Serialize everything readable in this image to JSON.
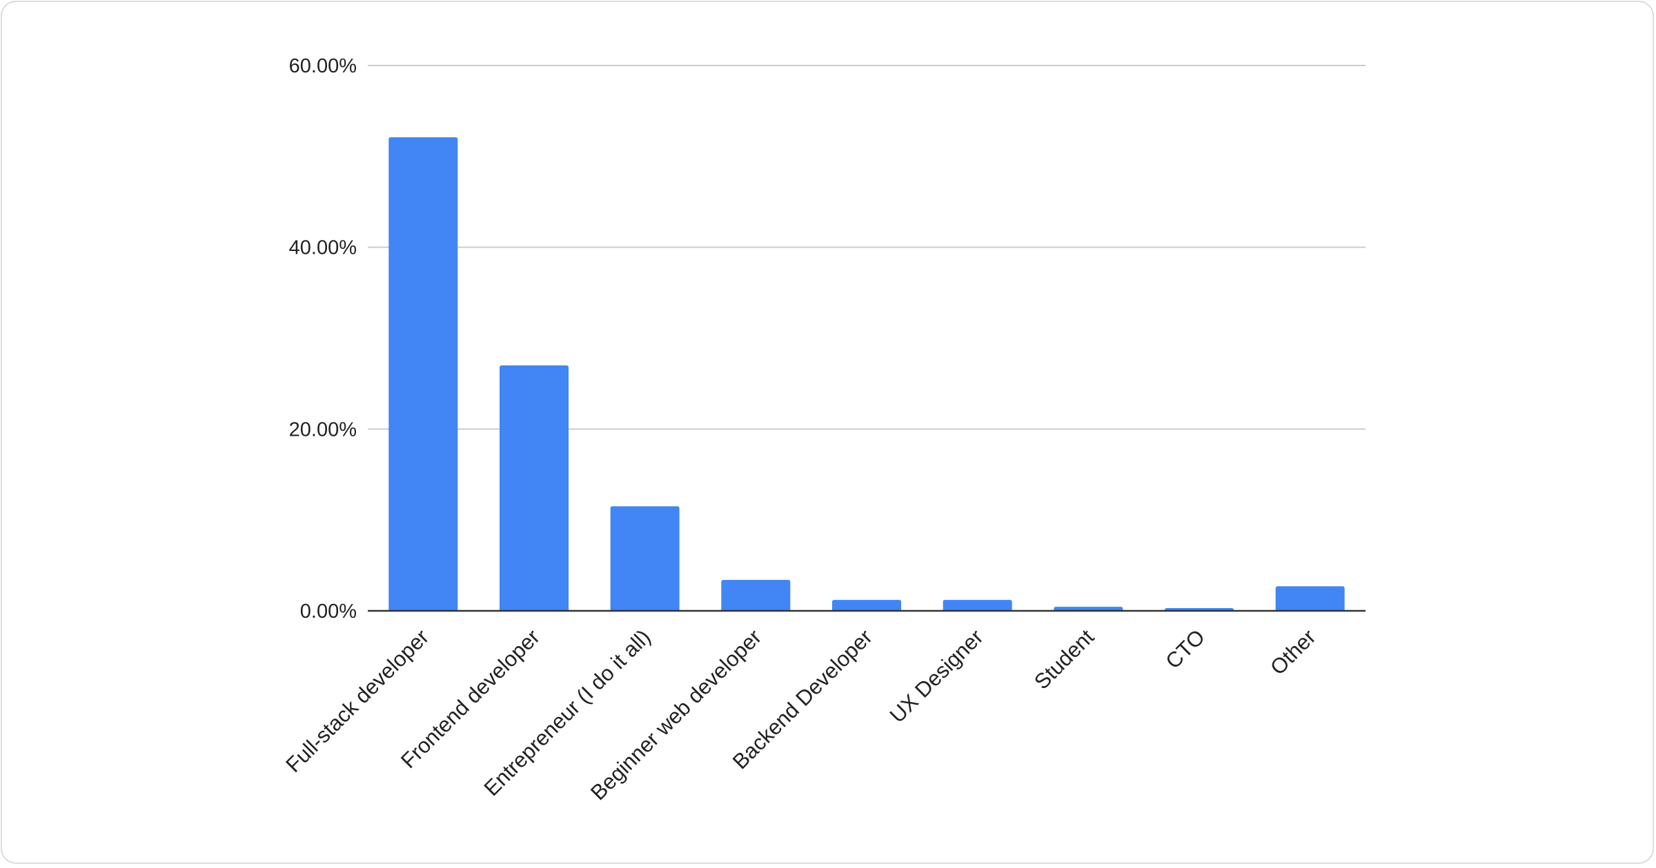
{
  "chart_data": {
    "type": "bar",
    "title": "",
    "xlabel": "",
    "ylabel": "",
    "categories": [
      "Full-stack developer",
      "Frontend developer",
      "Entrepreneur (I do it all)",
      "Beginner web developer",
      "Backend Developer",
      "UX Designer",
      "Student",
      "CTO",
      "Other"
    ],
    "values": [
      52.1,
      27.0,
      11.5,
      3.4,
      1.2,
      1.2,
      0.45,
      0.3,
      2.7
    ],
    "value_unit": "%",
    "ylim": [
      0,
      60
    ],
    "yticks": [
      0,
      20,
      40,
      60
    ],
    "ytick_labels": [
      "0.00%",
      "20.00%",
      "40.00%",
      "60.00%"
    ],
    "grid": true,
    "legend": "none",
    "bar_color": "#4285f4"
  }
}
